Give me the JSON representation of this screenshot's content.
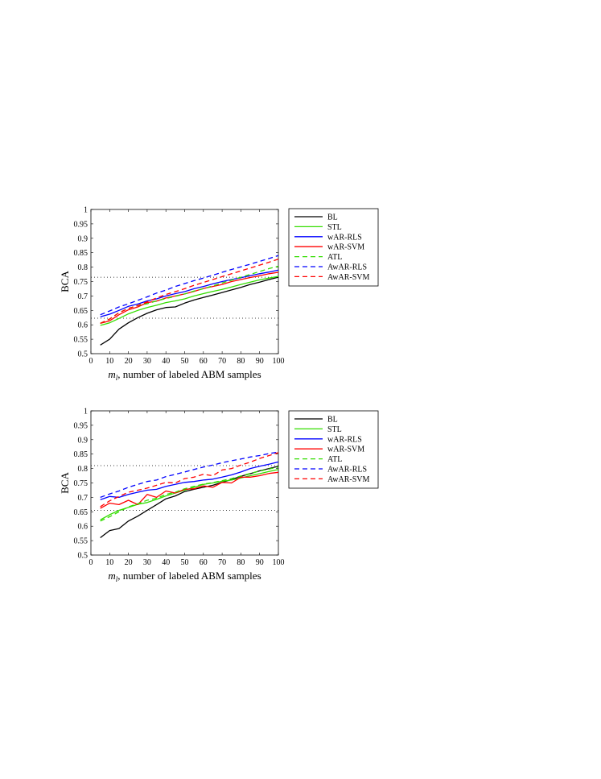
{
  "chart_data": [
    {
      "type": "line",
      "title": "",
      "xlabel_math": "m",
      "xlabel_math_sub": "l",
      "xlabel_rest": ", number of labeled ABM samples",
      "ylabel": "BCA",
      "xlim": [
        0,
        100
      ],
      "ylim": [
        0.5,
        1
      ],
      "x_ticks": [
        "0",
        "10",
        "20",
        "30",
        "40",
        "50",
        "60",
        "70",
        "80",
        "90",
        "100"
      ],
      "y_ticks": [
        "0.5",
        "0.55",
        "0.6",
        "0.65",
        "0.7",
        "0.75",
        "0.8",
        "0.85",
        "0.9",
        "0.95",
        "1"
      ],
      "reference_lines": [
        0.765,
        0.623
      ],
      "legend_position": "outside-right-top",
      "x": [
        5,
        10,
        15,
        20,
        25,
        30,
        35,
        40,
        45,
        50,
        55,
        60,
        65,
        70,
        75,
        80,
        85,
        90,
        95,
        100
      ],
      "series": [
        {
          "name": "BL",
          "color": "#000000",
          "dash": "solid",
          "values": [
            0.53,
            0.55,
            0.585,
            0.607,
            0.625,
            0.64,
            0.652,
            0.66,
            0.662,
            0.675,
            0.686,
            0.695,
            0.703,
            0.712,
            0.721,
            0.73,
            0.74,
            0.748,
            0.757,
            0.765
          ]
        },
        {
          "name": "STL",
          "color": "#33dd00",
          "dash": "solid",
          "values": [
            0.598,
            0.607,
            0.622,
            0.638,
            0.65,
            0.66,
            0.668,
            0.677,
            0.683,
            0.69,
            0.7,
            0.708,
            0.716,
            0.723,
            0.731,
            0.74,
            0.748,
            0.756,
            0.762,
            0.768
          ]
        },
        {
          "name": "wAR-RLS",
          "color": "#0000ff",
          "dash": "solid",
          "values": [
            0.628,
            0.637,
            0.65,
            0.664,
            0.672,
            0.683,
            0.69,
            0.7,
            0.708,
            0.715,
            0.725,
            0.733,
            0.742,
            0.75,
            0.757,
            0.763,
            0.77,
            0.777,
            0.783,
            0.79
          ]
        },
        {
          "name": "wAR-SVM",
          "color": "#ff0000",
          "dash": "solid",
          "values": [
            0.605,
            0.614,
            0.635,
            0.652,
            0.662,
            0.677,
            0.682,
            0.693,
            0.7,
            0.707,
            0.716,
            0.726,
            0.733,
            0.74,
            0.75,
            0.757,
            0.764,
            0.77,
            0.777,
            0.782
          ]
        },
        {
          "name": "ATL",
          "color": "#33dd00",
          "dash": "dashed",
          "values": [
            0.605,
            0.62,
            0.642,
            0.657,
            0.667,
            0.673,
            0.683,
            0.691,
            0.699,
            0.707,
            0.717,
            0.725,
            0.735,
            0.745,
            0.755,
            0.765,
            0.775,
            0.785,
            0.795,
            0.803
          ]
        },
        {
          "name": "AwAR-RLS",
          "color": "#0000ff",
          "dash": "dashed",
          "values": [
            0.635,
            0.648,
            0.662,
            0.673,
            0.685,
            0.697,
            0.71,
            0.72,
            0.733,
            0.743,
            0.753,
            0.762,
            0.772,
            0.782,
            0.792,
            0.801,
            0.81,
            0.82,
            0.83,
            0.84
          ]
        },
        {
          "name": "AwAR-SVM",
          "color": "#ff0000",
          "dash": "dashed",
          "values": [
            0.605,
            0.62,
            0.642,
            0.657,
            0.667,
            0.68,
            0.693,
            0.705,
            0.715,
            0.725,
            0.737,
            0.747,
            0.757,
            0.767,
            0.777,
            0.787,
            0.797,
            0.807,
            0.817,
            0.828
          ]
        }
      ]
    },
    {
      "type": "line",
      "title": "",
      "xlabel_math": "m",
      "xlabel_math_sub": "l",
      "xlabel_rest": ", number of labeled ABM samples",
      "ylabel": "BCA",
      "xlim": [
        0,
        100
      ],
      "ylim": [
        0.5,
        1
      ],
      "x_ticks": [
        "0",
        "10",
        "20",
        "30",
        "40",
        "50",
        "60",
        "70",
        "80",
        "90",
        "100"
      ],
      "y_ticks": [
        "0.5",
        "0.55",
        "0.6",
        "0.65",
        "0.7",
        "0.75",
        "0.8",
        "0.85",
        "0.9",
        "0.95",
        "1"
      ],
      "reference_lines": [
        0.81,
        0.655
      ],
      "legend_position": "outside-right-top",
      "x": [
        5,
        10,
        15,
        20,
        25,
        30,
        35,
        40,
        45,
        50,
        55,
        60,
        65,
        70,
        75,
        80,
        85,
        90,
        95,
        100
      ],
      "series": [
        {
          "name": "BL",
          "color": "#000000",
          "dash": "solid",
          "values": [
            0.56,
            0.585,
            0.592,
            0.618,
            0.635,
            0.655,
            0.675,
            0.695,
            0.705,
            0.72,
            0.728,
            0.735,
            0.742,
            0.752,
            0.762,
            0.773,
            0.782,
            0.792,
            0.8,
            0.808
          ]
        },
        {
          "name": "STL",
          "color": "#33dd00",
          "dash": "solid",
          "values": [
            0.622,
            0.64,
            0.655,
            0.665,
            0.676,
            0.682,
            0.693,
            0.705,
            0.715,
            0.725,
            0.735,
            0.745,
            0.75,
            0.756,
            0.76,
            0.767,
            0.775,
            0.782,
            0.79,
            0.797
          ]
        },
        {
          "name": "wAR-RLS",
          "color": "#0000ff",
          "dash": "solid",
          "values": [
            0.692,
            0.703,
            0.7,
            0.71,
            0.718,
            0.725,
            0.728,
            0.738,
            0.745,
            0.752,
            0.755,
            0.76,
            0.763,
            0.77,
            0.778,
            0.788,
            0.8,
            0.808,
            0.815,
            0.823
          ]
        },
        {
          "name": "wAR-SVM",
          "color": "#ff0000",
          "dash": "solid",
          "values": [
            0.662,
            0.68,
            0.675,
            0.69,
            0.675,
            0.71,
            0.7,
            0.722,
            0.715,
            0.728,
            0.73,
            0.74,
            0.735,
            0.752,
            0.75,
            0.77,
            0.77,
            0.775,
            0.783,
            0.787
          ]
        },
        {
          "name": "ATL",
          "color": "#33dd00",
          "dash": "dashed",
          "values": [
            0.618,
            0.633,
            0.65,
            0.667,
            0.678,
            0.69,
            0.697,
            0.71,
            0.718,
            0.73,
            0.738,
            0.746,
            0.751,
            0.758,
            0.765,
            0.774,
            0.783,
            0.791,
            0.798,
            0.805
          ]
        },
        {
          "name": "AwAR-RLS",
          "color": "#0000ff",
          "dash": "dashed",
          "values": [
            0.7,
            0.712,
            0.722,
            0.735,
            0.745,
            0.755,
            0.76,
            0.772,
            0.78,
            0.788,
            0.797,
            0.805,
            0.812,
            0.82,
            0.827,
            0.833,
            0.84,
            0.845,
            0.852,
            0.857
          ]
        },
        {
          "name": "AwAR-SVM",
          "color": "#ff0000",
          "dash": "dashed",
          "values": [
            0.668,
            0.688,
            0.703,
            0.718,
            0.725,
            0.732,
            0.742,
            0.752,
            0.75,
            0.765,
            0.77,
            0.78,
            0.775,
            0.795,
            0.8,
            0.812,
            0.822,
            0.835,
            0.845,
            0.855
          ]
        }
      ]
    }
  ]
}
